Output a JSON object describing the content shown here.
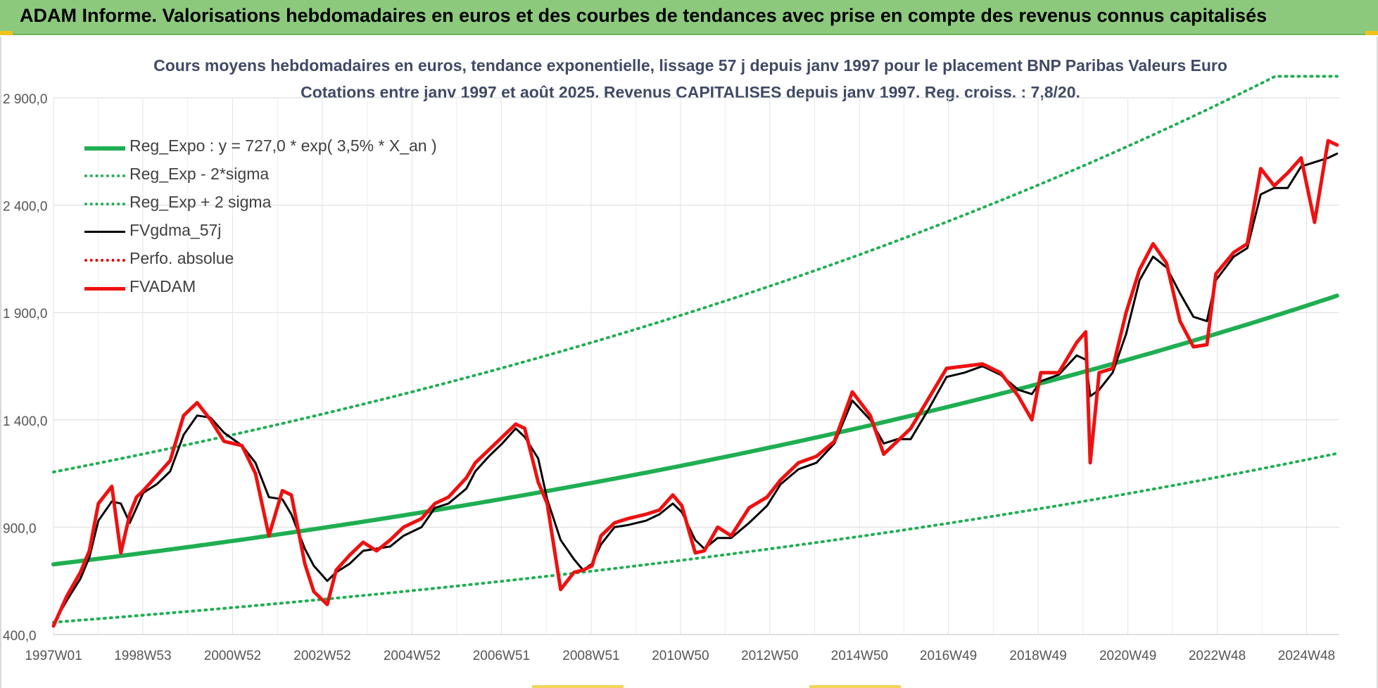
{
  "banner": {
    "title": "ADAM Informe. Valorisations hebdomadaires en euros et des courbes de tendances avec prise en compte des revenus connus capitalisés",
    "color": "#8cc97d"
  },
  "chart_data": {
    "type": "line",
    "title": "Cours moyens hebdomadaires en euros, tendance exponentielle, lissage 57 j depuis janv 1997 pour le placement BNP Paribas Valeurs Euro",
    "subtitle": "Cotations entre janv 1997 et août 2025. Revenus CAPITALISES depuis janv 1997. Reg. croiss. : 7,8/20.",
    "xlabel": "",
    "ylabel": "",
    "ylim": [
      400,
      3100
    ],
    "yticks": [
      400,
      900,
      1400,
      1900,
      2400,
      2900
    ],
    "ytick_labels": [
      "400,0",
      "900,0",
      "1 400,0",
      "1 900,0",
      "2 400,0",
      "2 900,0"
    ],
    "xlim": [
      1997.0,
      2025.65
    ],
    "xticks": [
      1997.0,
      1998.99,
      2000.99,
      2002.99,
      2004.99,
      2006.98,
      2008.98,
      2010.97,
      2012.96,
      2014.96,
      2016.94,
      2018.94,
      2020.94,
      2022.93,
      2024.92
    ],
    "xtick_labels": [
      "1997W01",
      "1998W53",
      "2000W52",
      "2002W52",
      "2004W52",
      "2006W51",
      "2008W51",
      "2010W50",
      "2012W50",
      "2014W50",
      "2016W49",
      "2018W49",
      "2020W49",
      "2022W48",
      "2024W48"
    ],
    "grid": true,
    "legend_position": "top-left",
    "series": [
      {
        "name": "Reg_Expo : y = 727,0 * exp( 3,5% *  X_an )",
        "kind": "exp",
        "a": 727.0,
        "r": 0.035,
        "color": "#1fae52",
        "style": "solid",
        "width": 6
      },
      {
        "name": "Reg_Exp - 2*sigma",
        "kind": "exp",
        "a": 457.0,
        "r": 0.035,
        "color": "#1fae52",
        "style": "dotted",
        "width": 4
      },
      {
        "name": "Reg_Exp + 2 sigma",
        "kind": "exp",
        "a": 1157.0,
        "r": 0.035,
        "cap": 3000,
        "color": "#1fae52",
        "style": "dotted",
        "width": 4
      },
      {
        "name": "FVgdma_57j",
        "kind": "points",
        "color": "#000000",
        "style": "solid",
        "width": 3,
        "x": [
          1997.0,
          1997.3,
          1997.6,
          1997.8,
          1998.0,
          1998.3,
          1998.5,
          1998.7,
          1998.85,
          1999.0,
          1999.3,
          1999.6,
          1999.9,
          2000.2,
          2000.5,
          2000.8,
          2001.2,
          2001.5,
          2001.8,
          2002.1,
          2002.3,
          2002.6,
          2002.8,
          2003.1,
          2003.3,
          2003.6,
          2003.9,
          2004.2,
          2004.5,
          2004.8,
          2005.2,
          2005.5,
          2005.8,
          2006.2,
          2006.4,
          2006.7,
          2007.0,
          2007.3,
          2007.5,
          2007.8,
          2008.0,
          2008.3,
          2008.6,
          2008.8,
          2009.0,
          2009.2,
          2009.5,
          2009.8,
          2010.2,
          2010.5,
          2010.8,
          2011.0,
          2011.3,
          2011.5,
          2011.8,
          2012.1,
          2012.5,
          2012.9,
          2013.2,
          2013.6,
          2014.0,
          2014.4,
          2014.8,
          2015.2,
          2015.5,
          2015.8,
          2016.1,
          2016.5,
          2016.9,
          2017.3,
          2017.7,
          2018.1,
          2018.5,
          2018.8,
          2019.0,
          2019.4,
          2019.8,
          2020.0,
          2020.1,
          2020.3,
          2020.6,
          2020.9,
          2021.2,
          2021.5,
          2021.8,
          2022.1,
          2022.4,
          2022.7,
          2022.9,
          2023.3,
          2023.6,
          2023.9,
          2024.2,
          2024.5,
          2024.8,
          2025.1,
          2025.4,
          2025.6
        ],
        "y": [
          450,
          560,
          660,
          760,
          930,
          1020,
          1010,
          920,
          990,
          1060,
          1100,
          1160,
          1330,
          1420,
          1410,
          1340,
          1280,
          1200,
          1040,
          1030,
          960,
          800,
          720,
          650,
          690,
          730,
          790,
          800,
          810,
          860,
          900,
          990,
          1010,
          1080,
          1160,
          1230,
          1290,
          1360,
          1320,
          1220,
          1030,
          840,
          750,
          700,
          730,
          820,
          900,
          910,
          930,
          960,
          1010,
          970,
          840,
          800,
          850,
          850,
          920,
          1000,
          1100,
          1170,
          1200,
          1290,
          1490,
          1400,
          1290,
          1310,
          1310,
          1450,
          1600,
          1620,
          1650,
          1610,
          1540,
          1520,
          1580,
          1610,
          1700,
          1680,
          1510,
          1540,
          1620,
          1800,
          2050,
          2160,
          2110,
          1990,
          1880,
          1860,
          2050,
          2160,
          2200,
          2450,
          2480,
          2480,
          2580,
          2600,
          2620,
          2640
        ]
      },
      {
        "name": "Perfo. absolue",
        "kind": "none",
        "color": "#e00000",
        "style": "dotted",
        "width": 4
      },
      {
        "name": "FVADAM",
        "kind": "points",
        "color": "#ee1111",
        "style": "solid",
        "width": 5,
        "x": [
          1997.0,
          1997.3,
          1997.6,
          1997.8,
          1998.0,
          1998.3,
          1998.5,
          1998.7,
          1998.85,
          1999.0,
          1999.3,
          1999.6,
          1999.9,
          2000.2,
          2000.5,
          2000.8,
          2001.2,
          2001.5,
          2001.8,
          2002.1,
          2002.3,
          2002.6,
          2002.8,
          2003.1,
          2003.3,
          2003.6,
          2003.9,
          2004.2,
          2004.5,
          2004.8,
          2005.2,
          2005.5,
          2005.8,
          2006.2,
          2006.4,
          2006.7,
          2007.0,
          2007.3,
          2007.5,
          2007.8,
          2008.0,
          2008.3,
          2008.6,
          2008.8,
          2009.0,
          2009.2,
          2009.5,
          2009.8,
          2010.2,
          2010.5,
          2010.8,
          2011.0,
          2011.3,
          2011.5,
          2011.8,
          2012.1,
          2012.5,
          2012.9,
          2013.2,
          2013.6,
          2014.0,
          2014.4,
          2014.8,
          2015.2,
          2015.5,
          2015.8,
          2016.1,
          2016.5,
          2016.9,
          2017.3,
          2017.7,
          2018.1,
          2018.5,
          2018.8,
          2019.0,
          2019.4,
          2019.8,
          2020.0,
          2020.1,
          2020.3,
          2020.6,
          2020.9,
          2021.2,
          2021.5,
          2021.8,
          2022.1,
          2022.4,
          2022.7,
          2022.9,
          2023.3,
          2023.6,
          2023.9,
          2024.2,
          2024.5,
          2024.8,
          2025.1,
          2025.4,
          2025.6
        ],
        "y": [
          440,
          580,
          690,
          790,
          1010,
          1090,
          780,
          960,
          1040,
          1070,
          1140,
          1210,
          1420,
          1480,
          1400,
          1300,
          1280,
          1150,
          860,
          1070,
          1050,
          730,
          600,
          540,
          700,
          770,
          830,
          790,
          840,
          900,
          940,
          1010,
          1040,
          1130,
          1200,
          1260,
          1320,
          1380,
          1360,
          1110,
          1010,
          610,
          690,
          700,
          720,
          860,
          920,
          940,
          960,
          980,
          1050,
          1000,
          780,
          790,
          900,
          860,
          990,
          1040,
          1120,
          1200,
          1230,
          1300,
          1530,
          1420,
          1240,
          1300,
          1360,
          1500,
          1640,
          1650,
          1660,
          1620,
          1510,
          1400,
          1620,
          1620,
          1760,
          1810,
          1200,
          1620,
          1640,
          1900,
          2100,
          2220,
          2130,
          1860,
          1740,
          1750,
          2080,
          2180,
          2220,
          2570,
          2490,
          2550,
          2620,
          2320,
          2700,
          2680
        ]
      }
    ]
  }
}
